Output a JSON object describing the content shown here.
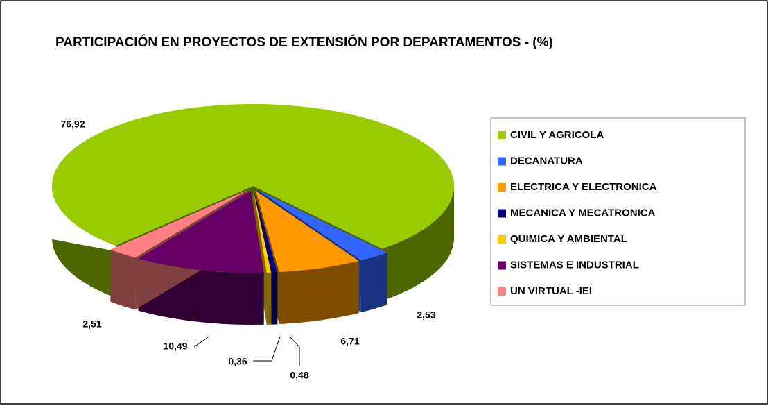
{
  "chart_data": {
    "type": "pie",
    "title": "PARTICIPACIÓN EN PROYECTOS DE EXTENSIÓN POR DEPARTAMENTOS - (%)",
    "categories": [
      "CIVIL Y AGRICOLA",
      "DECANATURA",
      "ELECTRICA Y ELECTRONICA",
      "MECANICA Y MECATRONICA",
      "QUIMICA Y AMBIENTAL",
      "SISTEMAS E INDUSTRIAL",
      "UN VIRTUAL -IEI"
    ],
    "values": [
      76.92,
      2.53,
      6.71,
      0.48,
      0.36,
      10.49,
      2.51
    ],
    "value_labels": [
      "76,92",
      "2,53",
      "6,71",
      "0,48",
      "0,36",
      "10,49",
      "2,51"
    ],
    "colors": [
      "#99cc00",
      "#3366ff",
      "#ff9900",
      "#000080",
      "#ffcc00",
      "#660066",
      "#ff8080"
    ],
    "legend": "right"
  }
}
